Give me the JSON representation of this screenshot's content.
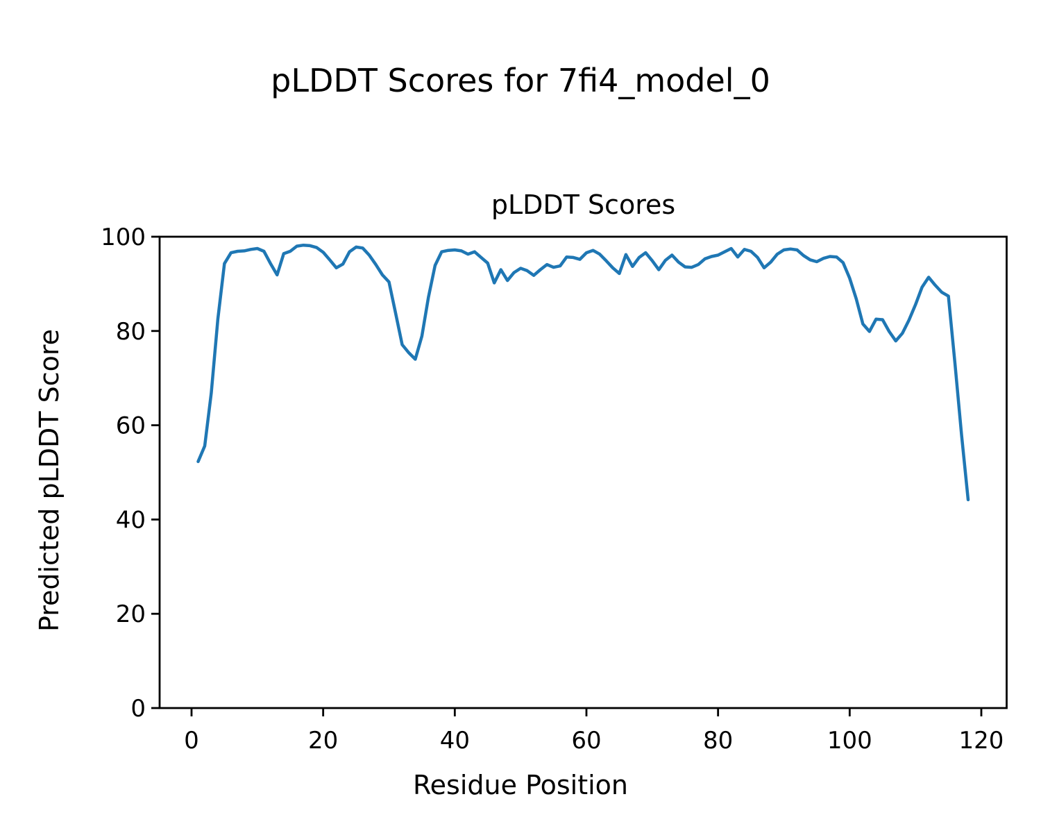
{
  "figure": {
    "suptitle": "pLDDT Scores for 7fi4_model_0"
  },
  "chart_data": {
    "type": "line",
    "title": "pLDDT Scores",
    "xlabel": "Residue Position",
    "ylabel": "Predicted pLDDT Score",
    "x_ticks": [
      0,
      20,
      40,
      60,
      80,
      100,
      120
    ],
    "y_ticks": [
      0,
      20,
      40,
      60,
      80,
      100
    ],
    "xlim": [
      -4.85,
      123.85
    ],
    "ylim": [
      0,
      100
    ],
    "grid": false,
    "legend_position": "none",
    "line_color": "#1f77b4",
    "axis_color": "#000000",
    "series": [
      {
        "name": "pLDDT",
        "x": [
          1,
          2,
          3,
          4,
          5,
          6,
          7,
          8,
          9,
          10,
          11,
          12,
          13,
          14,
          15,
          16,
          17,
          18,
          19,
          20,
          21,
          22,
          23,
          24,
          25,
          26,
          27,
          28,
          29,
          30,
          31,
          32,
          33,
          34,
          35,
          36,
          37,
          38,
          39,
          40,
          41,
          42,
          43,
          44,
          45,
          46,
          47,
          48,
          49,
          50,
          51,
          52,
          53,
          54,
          55,
          56,
          57,
          58,
          59,
          60,
          61,
          62,
          63,
          64,
          65,
          66,
          67,
          68,
          69,
          70,
          71,
          72,
          73,
          74,
          75,
          76,
          77,
          78,
          79,
          80,
          81,
          82,
          83,
          84,
          85,
          86,
          87,
          88,
          89,
          90,
          91,
          92,
          93,
          94,
          95,
          96,
          97,
          98,
          99,
          100,
          101,
          102,
          103,
          104,
          105,
          106,
          107,
          108,
          109,
          110,
          111,
          112,
          113,
          114,
          115,
          116,
          117,
          118
        ],
        "y": [
          52.3,
          55.6,
          66.8,
          82.5,
          94.3,
          96.6,
          96.9,
          97.0,
          97.3,
          97.5,
          96.9,
          94.3,
          91.9,
          96.4,
          96.9,
          98.0,
          98.2,
          98.1,
          97.7,
          96.7,
          95.1,
          93.4,
          94.2,
          96.8,
          97.8,
          97.6,
          96.1,
          94.1,
          91.9,
          90.4,
          83.8,
          77.1,
          75.4,
          74.0,
          78.9,
          87.2,
          93.9,
          96.8,
          97.1,
          97.2,
          97.0,
          96.3,
          96.8,
          95.6,
          94.4,
          90.2,
          93.0,
          90.7,
          92.4,
          93.3,
          92.8,
          91.8,
          93.0,
          94.1,
          93.5,
          93.8,
          95.7,
          95.6,
          95.2,
          96.6,
          97.1,
          96.3,
          94.9,
          93.4,
          92.2,
          96.2,
          93.7,
          95.6,
          96.6,
          94.9,
          93.0,
          95.0,
          96.1,
          94.6,
          93.6,
          93.5,
          94.1,
          95.3,
          95.8,
          96.1,
          96.8,
          97.5,
          95.7,
          97.3,
          96.9,
          95.6,
          93.4,
          94.6,
          96.3,
          97.2,
          97.4,
          97.2,
          96.0,
          95.1,
          94.7,
          95.4,
          95.8,
          95.7,
          94.5,
          91.2,
          86.8,
          81.5,
          79.9,
          82.5,
          82.4,
          79.9,
          77.9,
          79.5,
          82.3,
          85.6,
          89.3,
          91.4,
          89.7,
          88.2,
          87.4,
          73.0,
          58.0,
          44.2
        ]
      }
    ]
  }
}
